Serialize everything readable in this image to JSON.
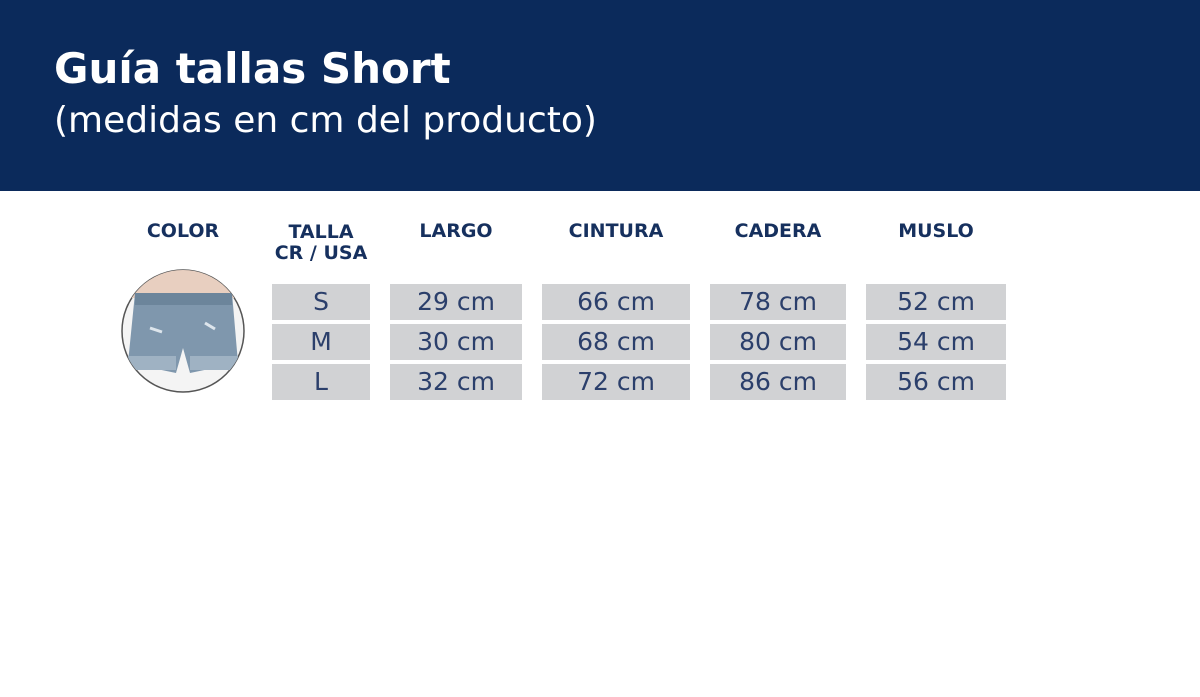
{
  "header": {
    "title": "Guía tallas Short",
    "subtitle": "(medidas en cm del producto)"
  },
  "table": {
    "headers": [
      "COLOR",
      [
        "TALLA",
        "CR / USA"
      ],
      "LARGO",
      "CINTURA",
      "CADERA",
      "MUSLO"
    ],
    "rows": [
      [
        "S",
        "29 cm",
        "66 cm",
        "78 cm",
        "52 cm"
      ],
      [
        "M",
        "30 cm",
        "68 cm",
        "80 cm",
        "54 cm"
      ],
      [
        "L",
        "32 cm",
        "72 cm",
        "86 cm",
        "56 cm"
      ]
    ]
  }
}
